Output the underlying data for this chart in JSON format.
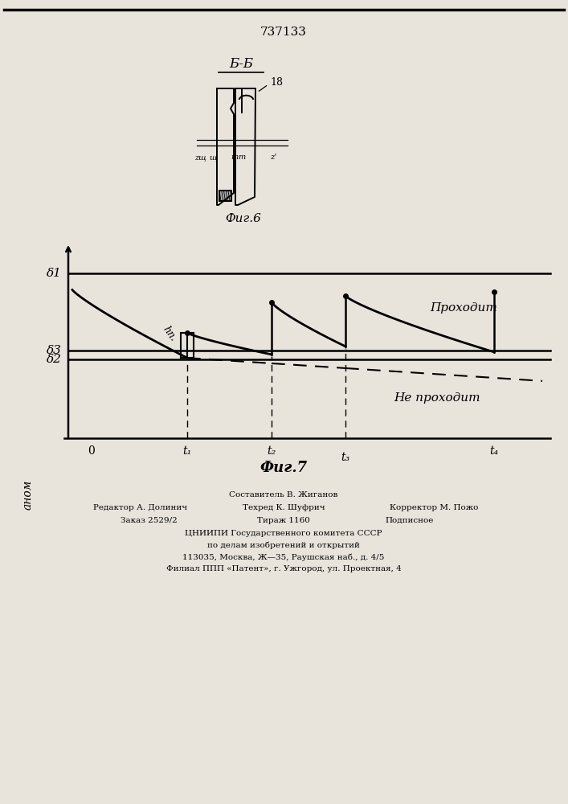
{
  "patent_number": "737133",
  "fig6_label": "Б-Б",
  "fig6_caption": "Фиг.6",
  "fig7_caption": "Фиг.7",
  "label_18": "18",
  "label_delta1": "δ1",
  "label_delta3": "δ3",
  "label_delta2": "δ2",
  "label_hp": "hп.",
  "label_0": "0",
  "label_t1": "t₁",
  "label_t2": "t₂",
  "label_t3": "t₃",
  "label_t4": "t₄",
  "label_anom": "аном",
  "label_proxodit": "Проходит",
  "label_ne_proxodit": "Не проходит",
  "label_zw": "zщ",
  "label_w": "щ",
  "label_m1": "m",
  "label_m2": "m",
  "label_zprime": "z'",
  "footer_editor": "Редактор А. Долинич",
  "footer_tech": "Техред К. Шуфрич",
  "footer_corr": "Корректор М. Пожо",
  "footer_order": "Заказ 2529/2",
  "footer_tirazh": "Тираж 1160",
  "footer_podp": "Подписное",
  "footer_comp": "Составитель В. Жиганов",
  "footer_cniip1": "ЦНИИПИ Государственного комитета СССР",
  "footer_cniip2": "по делам изобретений и открытий",
  "footer_addr1": "113035, Москва, Ж—35, Раушская наб., д. 4/5",
  "footer_addr2": "Филиал ППП «Патент», г. Ужгород, ул. Проектная, 4",
  "bg_color": "#e8e4dc"
}
